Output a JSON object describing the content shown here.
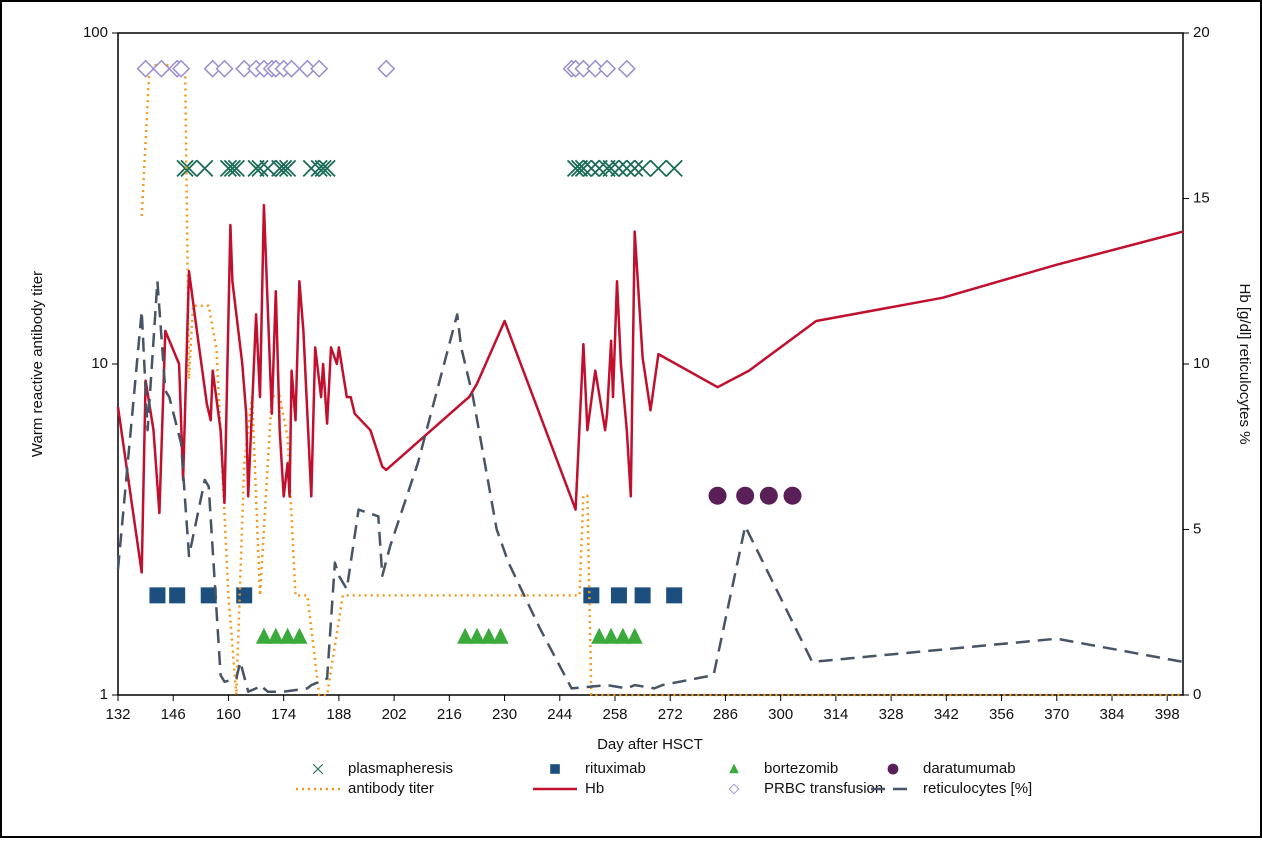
{
  "chart_data": {
    "type": "combo",
    "x_label": "Day after HSCT",
    "y_label": "Warm reactive antibody titer",
    "y2_label": "Hb [g/dl] reticulocytes %",
    "xlim": [
      132,
      402
    ],
    "xticks": [
      132,
      146,
      160,
      174,
      188,
      202,
      216,
      230,
      244,
      258,
      272,
      286,
      300,
      314,
      328,
      342,
      356,
      370,
      384,
      398
    ],
    "ylim": [
      1,
      100
    ],
    "yticks": [
      1,
      10,
      100
    ],
    "y_scale": "log",
    "y2lim": [
      0,
      20
    ],
    "y2ticks": [
      0,
      5,
      10,
      15,
      20
    ],
    "series": [
      {
        "name": "plasmapheresis",
        "color": "#1b6b58",
        "marker": "x",
        "x": [
          149,
          150,
          154,
          160,
          161,
          162,
          167,
          168,
          170,
          173,
          174,
          175,
          181,
          183,
          184,
          185,
          248,
          249,
          250,
          252,
          254,
          256,
          257,
          259,
          261,
          263,
          265,
          269,
          273
        ],
        "values": [
          39,
          39,
          39,
          39,
          39,
          39,
          39,
          39,
          39,
          39,
          39,
          39,
          39,
          39,
          39,
          39,
          39,
          39,
          39,
          39,
          39,
          39,
          39,
          39,
          39,
          39,
          39,
          39,
          39
        ]
      },
      {
        "name": "rituximab",
        "color": "#1c4f7e",
        "marker": "square",
        "x": [
          142,
          147,
          155,
          164,
          252,
          259,
          265,
          273
        ],
        "values": [
          2,
          2,
          2,
          2,
          2,
          2,
          2,
          2
        ]
      },
      {
        "name": "bortezomib",
        "color": "#3aaa3a",
        "marker": "triangle",
        "x": [
          169,
          172,
          175,
          178,
          220,
          223,
          226,
          229,
          254,
          257,
          260,
          263
        ],
        "values": [
          1.5,
          1.5,
          1.5,
          1.5,
          1.5,
          1.5,
          1.5,
          1.5,
          1.5,
          1.5,
          1.5,
          1.5
        ]
      },
      {
        "name": "daratumumab",
        "color": "#5a1f57",
        "marker": "circle",
        "x": [
          284,
          291,
          297,
          303
        ],
        "values": [
          4,
          4,
          4,
          4
        ]
      },
      {
        "name": "antibody titer",
        "color": "#f39a1e",
        "line": "dotted",
        "x": [
          138,
          140,
          149,
          150,
          151,
          155,
          157,
          160,
          162,
          164,
          166,
          168,
          171,
          173,
          175,
          177,
          180,
          183,
          185,
          189,
          249,
          250,
          251,
          252,
          402
        ],
        "values": [
          28,
          80,
          80,
          9,
          15,
          15,
          11,
          2,
          1,
          5,
          8,
          2,
          8,
          8,
          6,
          2,
          2,
          1,
          1,
          2,
          2,
          4,
          4,
          1,
          1
        ]
      },
      {
        "name": "Hb",
        "color": "#c0102e",
        "line": "solid",
        "axis": "y2",
        "x": [
          132,
          138,
          139,
          141,
          142.5,
          144,
          147.5,
          148.5,
          150,
          152,
          154.5,
          155.5,
          156,
          158,
          159,
          160.5,
          161,
          163.5,
          164.5,
          165,
          167,
          168,
          169,
          170.5,
          171,
          172,
          173,
          174,
          175,
          175.5,
          176,
          177,
          178,
          179,
          181,
          182,
          183.5,
          184,
          185,
          186,
          187.5,
          188,
          190,
          191,
          192,
          196,
          199,
          200,
          220,
          221,
          223,
          230,
          248,
          250,
          251,
          253,
          255.5,
          256,
          257,
          257.5,
          258.5,
          259.5,
          261,
          262,
          263,
          265,
          267,
          269,
          284,
          292,
          309,
          341,
          370,
          402
        ],
        "values": [
          8.7,
          3.7,
          9.5,
          8,
          5.5,
          11,
          10,
          6.5,
          12.8,
          11,
          8.8,
          8.3,
          9.8,
          8,
          5.8,
          14.2,
          12.5,
          10,
          8.5,
          6,
          11.5,
          9,
          14.8,
          10,
          8.5,
          12.2,
          8,
          6,
          7,
          6,
          9.8,
          8.3,
          12.5,
          11,
          6,
          10.5,
          9,
          10,
          8.2,
          10.5,
          10,
          10.5,
          9,
          9,
          8.5,
          8,
          6.9,
          6.8,
          8.9,
          9,
          9.4,
          11.3,
          5.6,
          10.6,
          8,
          9.8,
          8,
          8.5,
          10.7,
          9,
          12.5,
          10,
          8,
          6,
          14,
          10.2,
          8.6,
          10.3,
          9.3,
          9.8,
          11.3,
          12,
          13,
          14
        ]
      },
      {
        "name": "PRBC transfusion",
        "color": "#9b8fd0",
        "marker": "diamond",
        "x": [
          139,
          143,
          147,
          148,
          156,
          159,
          164,
          167,
          169,
          171,
          172,
          174,
          176,
          180,
          183,
          200,
          247,
          248,
          250,
          253,
          256,
          261
        ],
        "values": [
          78,
          78,
          78,
          78,
          78,
          78,
          78,
          78,
          78,
          78,
          78,
          78,
          78,
          78,
          78,
          78,
          78,
          78,
          78,
          78,
          78,
          78
        ]
      },
      {
        "name": "reticulocytes [%]",
        "color": "#465466",
        "line": "dashed",
        "axis": "y2",
        "x": [
          132,
          138,
          139.5,
          142,
          144,
          145,
          148,
          150,
          154,
          155,
          158,
          159,
          162,
          163,
          165,
          167,
          168,
          170,
          174,
          180,
          181,
          185,
          187,
          188,
          190,
          193,
          198,
          199,
          201,
          208,
          218,
          219,
          222,
          228,
          231,
          239,
          247,
          256,
          261,
          263,
          268,
          270,
          283,
          291,
          308,
          370,
          402
        ],
        "values": [
          3.8,
          11.6,
          8,
          12.5,
          9.2,
          9,
          7.6,
          4.2,
          6.5,
          6.3,
          0.6,
          0.4,
          0.5,
          1,
          0.1,
          0.2,
          0.3,
          0.1,
          0.1,
          0.2,
          0.3,
          0.5,
          4,
          3.6,
          3.2,
          5.6,
          5.4,
          3.6,
          4.5,
          7,
          11.5,
          10.5,
          9,
          5,
          4,
          2,
          0.2,
          0.3,
          0.2,
          0.3,
          0.2,
          0.3,
          0.6,
          5.1,
          1,
          1.7,
          1
        ]
      }
    ]
  }
}
